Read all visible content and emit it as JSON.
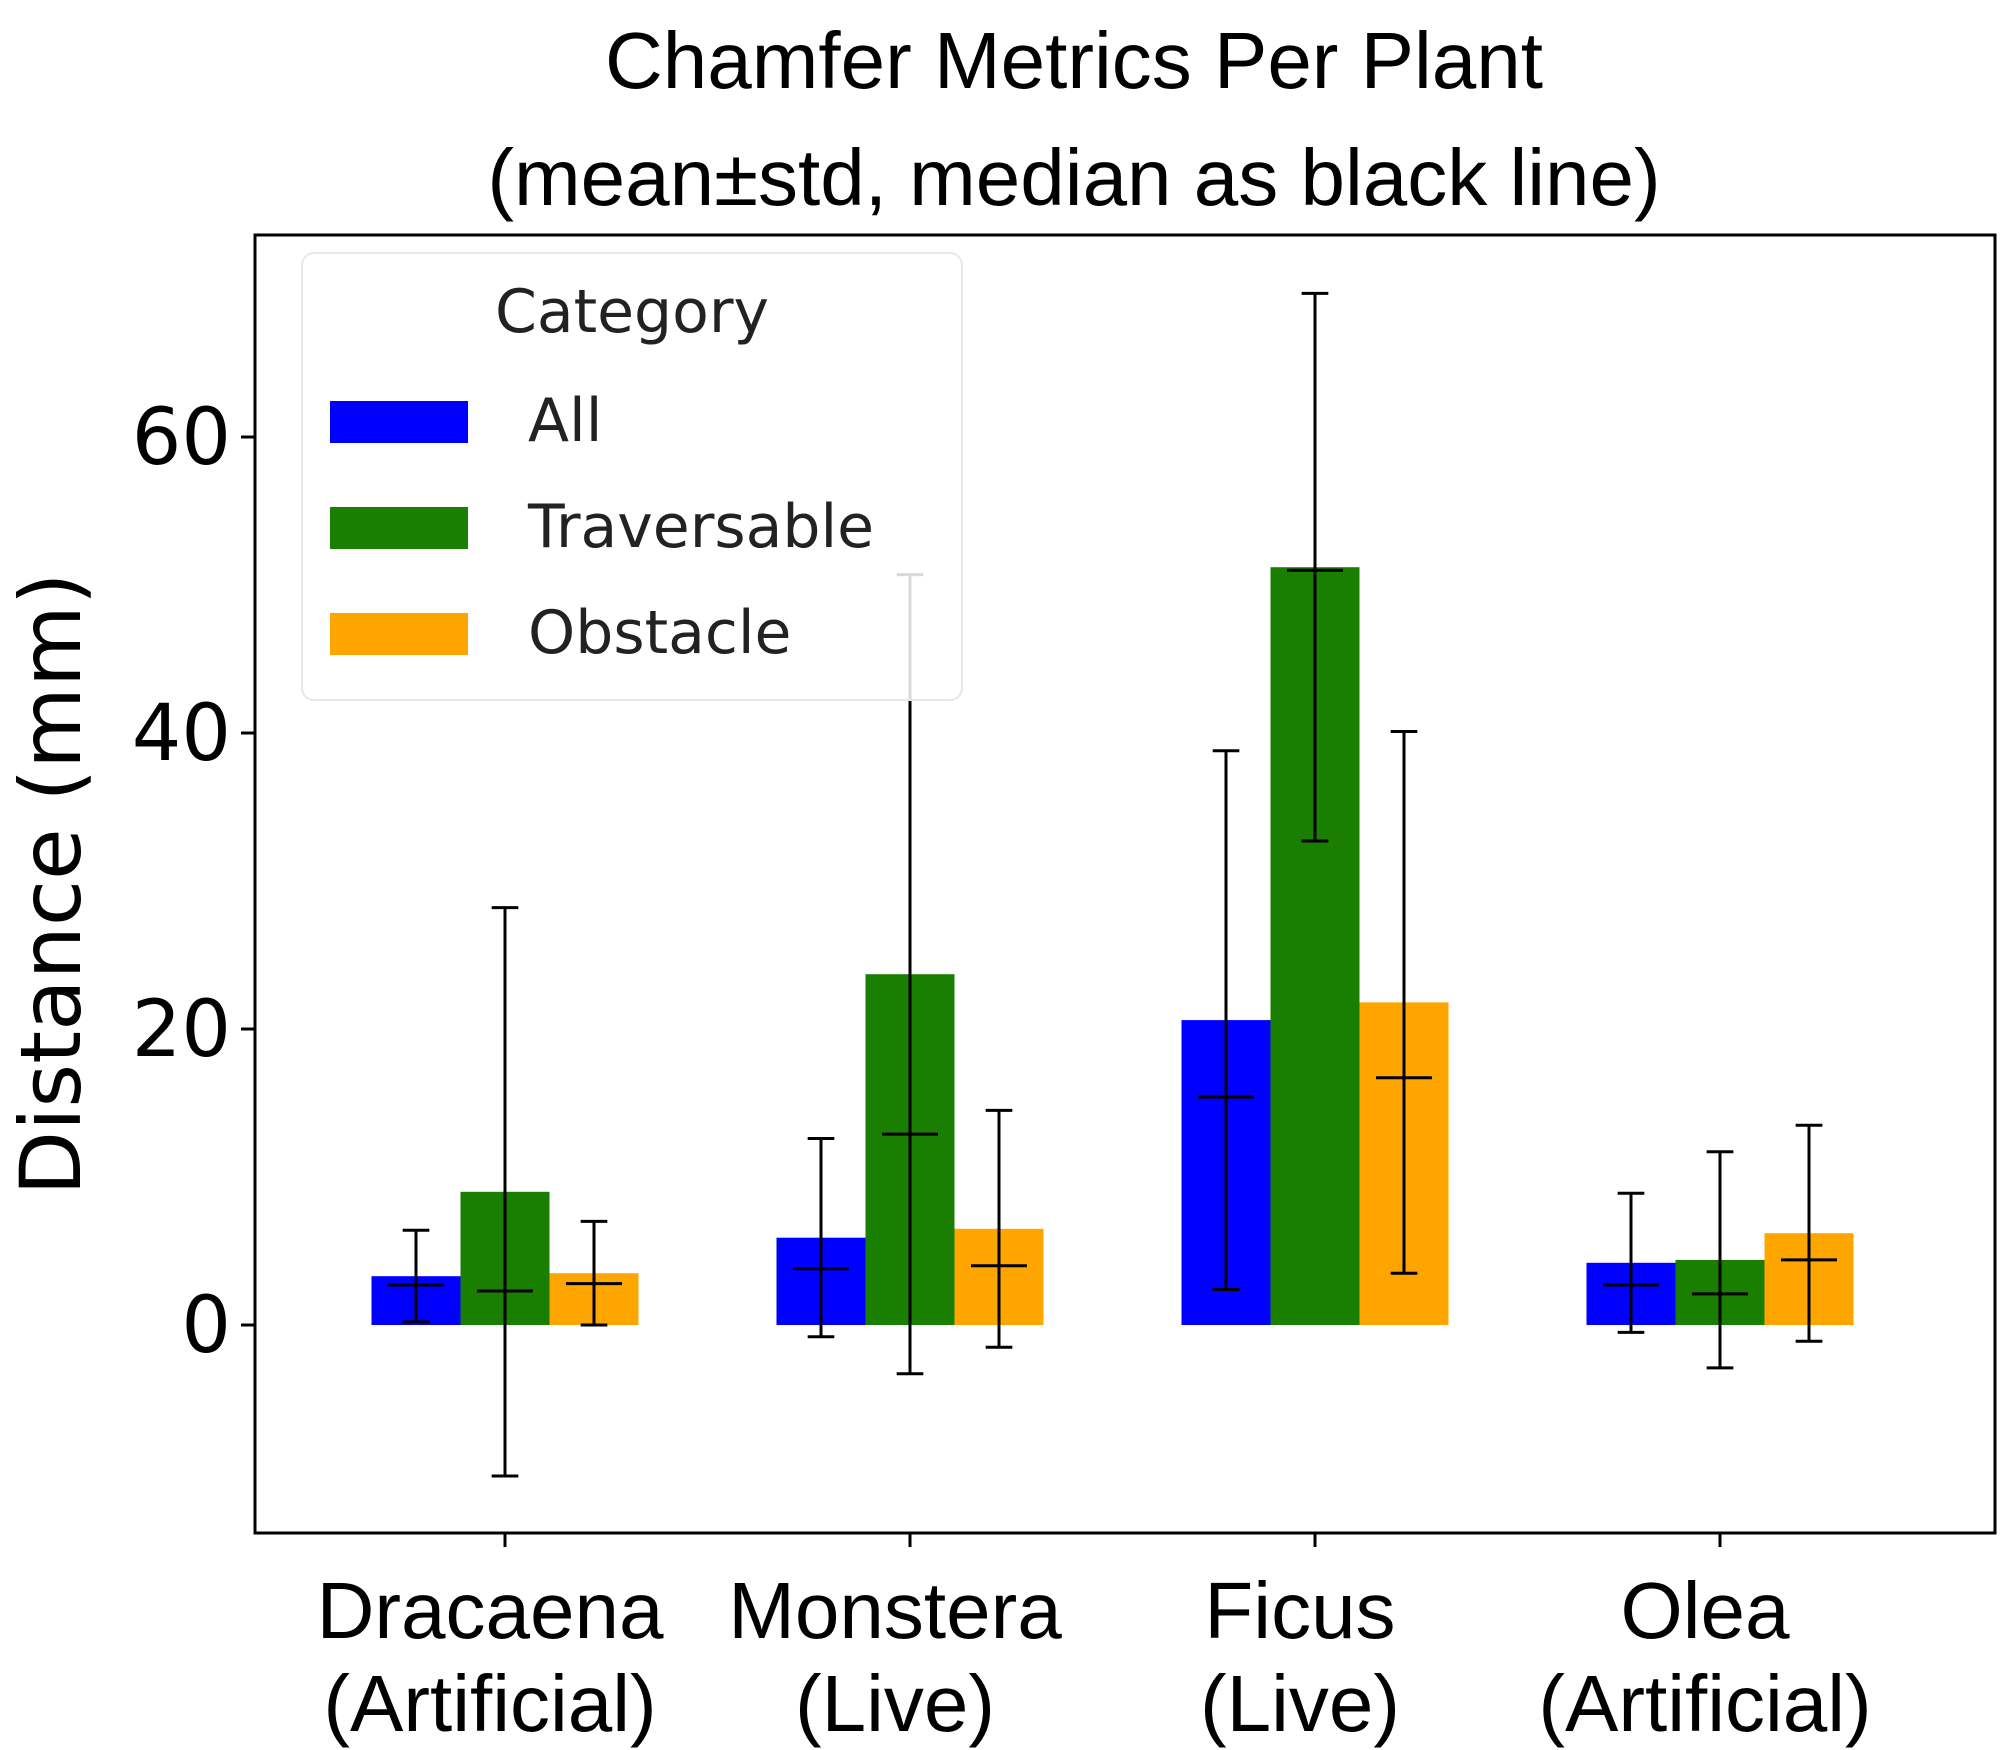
{
  "chart_data": {
    "type": "bar",
    "title": [
      "Chamfer Metrics Per Plant",
      "(mean±std, median as black line)"
    ],
    "xlabel": "",
    "ylabel": "Distance (mm)",
    "ylim": [
      -14,
      73.6
    ],
    "yticks": [
      0,
      20,
      40,
      60
    ],
    "grid": false,
    "legend": {
      "title": "Category",
      "position": "top-left"
    },
    "categories": [
      [
        "Dracaena",
        "(Artificial)"
      ],
      [
        "Monstera",
        "(Live)"
      ],
      [
        "Ficus",
        "(Live)"
      ],
      [
        "Olea",
        "(Artificial)"
      ]
    ],
    "series": [
      {
        "name": "All",
        "color": "#0000ff",
        "mean": [
          3.3,
          5.9,
          20.6,
          4.2
        ],
        "std": [
          3.1,
          6.7,
          18.2,
          4.7
        ],
        "median": [
          2.7,
          3.8,
          15.4,
          2.7
        ]
      },
      {
        "name": "Traversable",
        "color": "#1a7f00",
        "mean": [
          9.0,
          23.7,
          51.2,
          4.4
        ],
        "std": [
          19.2,
          27.0,
          18.5,
          7.3
        ],
        "median": [
          2.3,
          12.9,
          51.0,
          2.1
        ]
      },
      {
        "name": "Obstacle",
        "color": "#ffa500",
        "mean": [
          3.5,
          6.5,
          21.8,
          6.2
        ],
        "std": [
          3.5,
          8.0,
          18.3,
          7.3
        ],
        "median": [
          2.8,
          4.0,
          16.7,
          4.4
        ]
      }
    ]
  }
}
